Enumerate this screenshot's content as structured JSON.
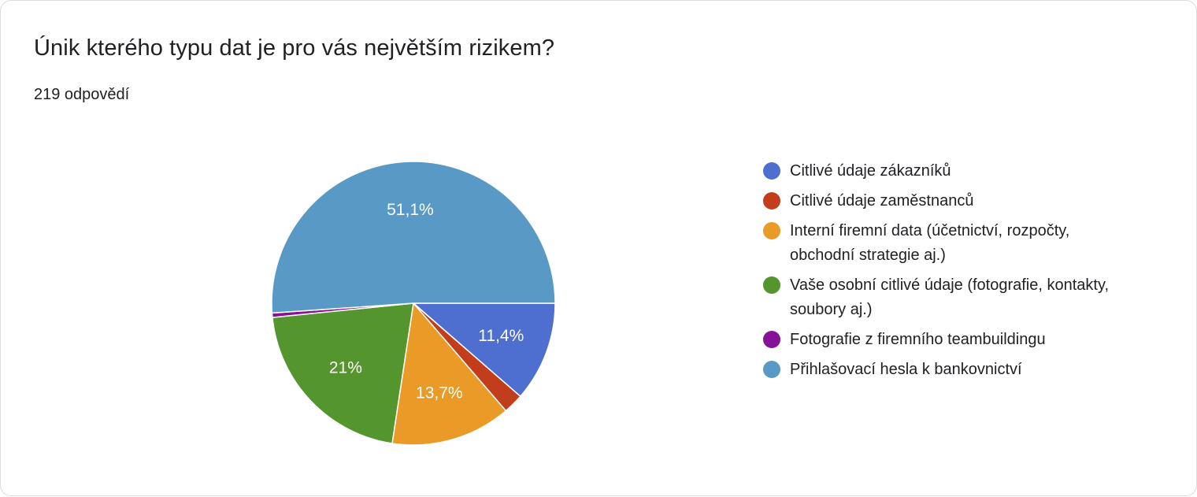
{
  "question": {
    "title": "Únik kterého typu dat je pro vás největším rizikem?",
    "responses": "219 odpovědí"
  },
  "chart_data": {
    "type": "pie",
    "start_angle": "90° clockwise from top (first slice starts at 3 o'clock)",
    "direction": "clockwise",
    "slices": [
      {
        "label": "Citlivé údaje zákazníků",
        "value": 11.4,
        "display": "11,4%",
        "color": "#4f6fd0"
      },
      {
        "label": "Citlivé údaje zaměstnanců",
        "value": 2.3,
        "display": "",
        "color": "#c23d1c"
      },
      {
        "label": "Interní firemní data (účetnictví, rozpočty, obchodní strategie aj.)",
        "value": 13.7,
        "display": "13,7%",
        "color": "#e99a27"
      },
      {
        "label": "Vaše osobní citlivé údaje (fotografie, kontakty, soubory aj.)",
        "value": 21.0,
        "display": "21%",
        "color": "#54952e"
      },
      {
        "label": "Fotografie z firemního teambuildingu",
        "value": 0.5,
        "display": "",
        "color": "#86129a"
      },
      {
        "label": "Přihlašovací hesla k bankovnictví",
        "value": 51.1,
        "display": "51,1%",
        "color": "#5899c6"
      }
    ],
    "legend_position": "right"
  }
}
